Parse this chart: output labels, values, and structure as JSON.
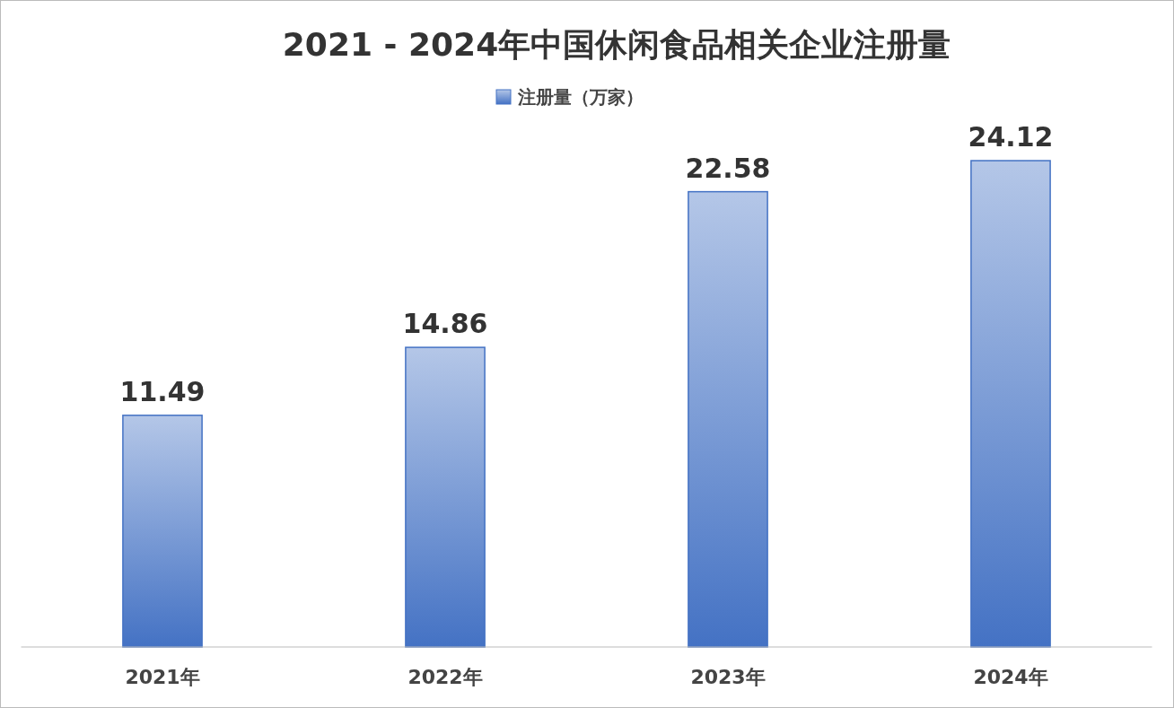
{
  "chart_data": {
    "type": "bar",
    "title": "2021 - 2024年中国休闲食品相关企业注册量",
    "categories": [
      "2021年",
      "2022年",
      "2023年",
      "2024年"
    ],
    "series": [
      {
        "name": "注册量（万家）",
        "color": "#4472c4",
        "values": [
          11.49,
          14.86,
          22.58,
          24.12
        ]
      }
    ],
    "data_labels": true,
    "legend": "top",
    "grid": false
  }
}
